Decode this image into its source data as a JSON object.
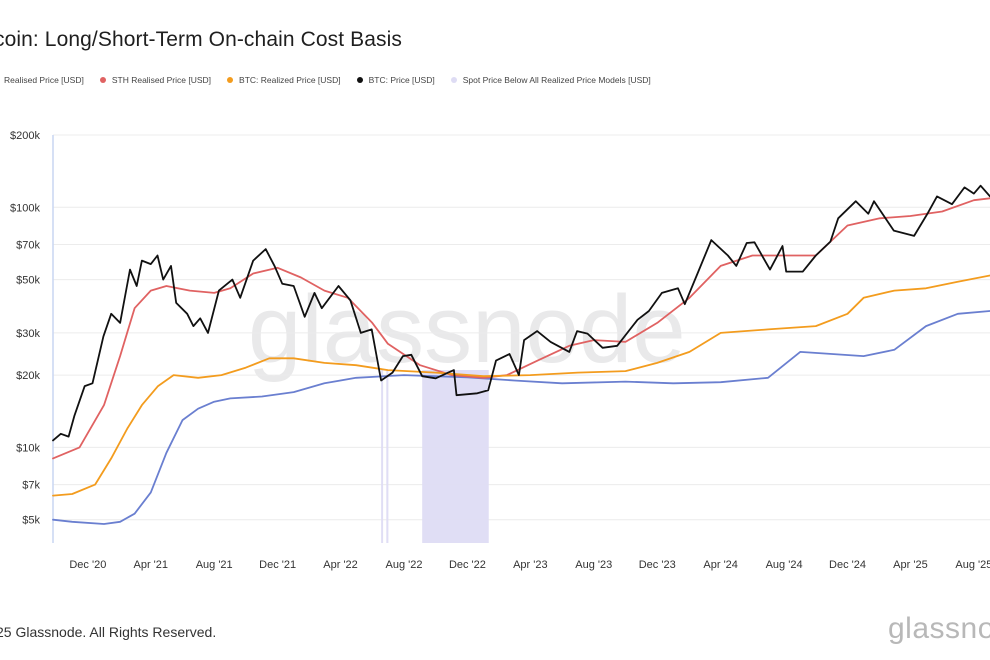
{
  "title": "coin: Long/Short-Term On-chain Cost Basis",
  "legend": [
    {
      "label": "Realised Price [USD]",
      "color": "#6a7fd0"
    },
    {
      "label": "STH Realised Price [USD]",
      "color": "#e06262"
    },
    {
      "label": "BTC: Realized Price [USD]",
      "color": "#f39c1e"
    },
    {
      "label": "BTC: Price [USD]",
      "color": "#111111"
    },
    {
      "label": "Spot Price Below All Realized Price Models [USD]",
      "color": "#dedcf4"
    }
  ],
  "footer": "25 Glassnode. All Rights Reserved.",
  "brand": "glassnode",
  "watermark": "glassnode",
  "chart_data": {
    "type": "line",
    "title": "coin: Long/Short-Term On-chain Cost Basis",
    "y_scale": "log",
    "ylim": [
      4000,
      200000
    ],
    "y_ticks": [
      {
        "value": 5000,
        "label": "$5k"
      },
      {
        "value": 7000,
        "label": "$7k"
      },
      {
        "value": 10000,
        "label": "$10k"
      },
      {
        "value": 20000,
        "label": "$20k"
      },
      {
        "value": 30000,
        "label": "$30k"
      },
      {
        "value": 50000,
        "label": "$50k"
      },
      {
        "value": 70000,
        "label": "$70k"
      },
      {
        "value": 100000,
        "label": "$100k"
      },
      {
        "value": 200000,
        "label": "$200k"
      }
    ],
    "xlim": [
      "2020-09-25",
      "2025-09-01"
    ],
    "x_ticks": [
      {
        "date": "2020-12-01",
        "label": "Dec '20"
      },
      {
        "date": "2021-04-01",
        "label": "Apr '21"
      },
      {
        "date": "2021-08-01",
        "label": "Aug '21"
      },
      {
        "date": "2021-12-01",
        "label": "Dec '21"
      },
      {
        "date": "2022-04-01",
        "label": "Apr '22"
      },
      {
        "date": "2022-08-01",
        "label": "Aug '22"
      },
      {
        "date": "2022-12-01",
        "label": "Dec '22"
      },
      {
        "date": "2023-04-01",
        "label": "Apr '23"
      },
      {
        "date": "2023-08-01",
        "label": "Aug '23"
      },
      {
        "date": "2023-12-01",
        "label": "Dec '23"
      },
      {
        "date": "2024-04-01",
        "label": "Apr '24"
      },
      {
        "date": "2024-08-01",
        "label": "Aug '24"
      },
      {
        "date": "2024-12-01",
        "label": "Dec '24"
      },
      {
        "date": "2025-04-01",
        "label": "Apr '25"
      },
      {
        "date": "2025-08-01",
        "label": "Aug '25"
      }
    ],
    "shaded_ranges": [
      {
        "start": "2022-06-18",
        "end": "2022-06-20"
      },
      {
        "start": "2022-06-28",
        "end": "2022-07-02"
      },
      {
        "start": "2022-09-05",
        "end": "2023-01-11"
      }
    ],
    "series": [
      {
        "name": "Realised Price [USD]",
        "color": "#6a7fd0",
        "points": [
          [
            "2020-09-25",
            5000
          ],
          [
            "2020-11-01",
            4900
          ],
          [
            "2021-01-01",
            4800
          ],
          [
            "2021-02-01",
            4900
          ],
          [
            "2021-03-01",
            5300
          ],
          [
            "2021-04-01",
            6500
          ],
          [
            "2021-05-01",
            9500
          ],
          [
            "2021-06-01",
            13000
          ],
          [
            "2021-07-01",
            14500
          ],
          [
            "2021-08-01",
            15500
          ],
          [
            "2021-09-01",
            16000
          ],
          [
            "2021-11-01",
            16300
          ],
          [
            "2022-01-01",
            17000
          ],
          [
            "2022-03-01",
            18500
          ],
          [
            "2022-05-01",
            19500
          ],
          [
            "2022-08-01",
            20000
          ],
          [
            "2022-12-01",
            19600
          ],
          [
            "2023-03-01",
            19000
          ],
          [
            "2023-06-01",
            18500
          ],
          [
            "2023-10-01",
            18800
          ],
          [
            "2024-01-01",
            18500
          ],
          [
            "2024-04-01",
            18700
          ],
          [
            "2024-07-01",
            19500
          ],
          [
            "2024-09-01",
            25000
          ],
          [
            "2024-11-01",
            24500
          ],
          [
            "2025-01-01",
            24000
          ],
          [
            "2025-03-01",
            25500
          ],
          [
            "2025-05-01",
            32000
          ],
          [
            "2025-07-01",
            36000
          ],
          [
            "2025-09-01",
            37000
          ]
        ]
      },
      {
        "name": "STH Realised Price [USD]",
        "color": "#e06262",
        "points": [
          [
            "2020-09-25",
            9000
          ],
          [
            "2020-11-15",
            10000
          ],
          [
            "2021-01-01",
            15000
          ],
          [
            "2021-02-01",
            24000
          ],
          [
            "2021-03-01",
            38000
          ],
          [
            "2021-04-01",
            45000
          ],
          [
            "2021-05-01",
            47000
          ],
          [
            "2021-06-15",
            45000
          ],
          [
            "2021-08-01",
            44000
          ],
          [
            "2021-09-01",
            46000
          ],
          [
            "2021-10-15",
            53000
          ],
          [
            "2021-12-01",
            56000
          ],
          [
            "2022-01-15",
            51000
          ],
          [
            "2022-03-01",
            45000
          ],
          [
            "2022-04-15",
            42000
          ],
          [
            "2022-06-01",
            33000
          ],
          [
            "2022-07-01",
            27000
          ],
          [
            "2022-09-01",
            22000
          ],
          [
            "2022-11-01",
            20000
          ],
          [
            "2023-01-01",
            19500
          ],
          [
            "2023-02-15",
            20000
          ],
          [
            "2023-04-15",
            23000
          ],
          [
            "2023-06-15",
            26500
          ],
          [
            "2023-08-01",
            28000
          ],
          [
            "2023-10-01",
            27500
          ],
          [
            "2023-12-01",
            33000
          ],
          [
            "2024-02-01",
            42000
          ],
          [
            "2024-04-01",
            57000
          ],
          [
            "2024-06-01",
            63000
          ],
          [
            "2024-08-01",
            63000
          ],
          [
            "2024-10-01",
            63000
          ],
          [
            "2024-12-01",
            84000
          ],
          [
            "2025-02-01",
            90000
          ],
          [
            "2025-04-01",
            92000
          ],
          [
            "2025-06-01",
            96000
          ],
          [
            "2025-08-01",
            107000
          ],
          [
            "2025-09-01",
            109000
          ]
        ]
      },
      {
        "name": "BTC: Realized Price [USD]",
        "color": "#f39c1e",
        "points": [
          [
            "2020-09-25",
            6300
          ],
          [
            "2020-11-01",
            6400
          ],
          [
            "2020-12-15",
            7000
          ],
          [
            "2021-01-15",
            9000
          ],
          [
            "2021-02-15",
            12000
          ],
          [
            "2021-03-15",
            15000
          ],
          [
            "2021-04-15",
            18000
          ],
          [
            "2021-05-15",
            20000
          ],
          [
            "2021-07-01",
            19500
          ],
          [
            "2021-08-15",
            20000
          ],
          [
            "2021-10-01",
            21500
          ],
          [
            "2021-11-15",
            23500
          ],
          [
            "2022-01-01",
            23500
          ],
          [
            "2022-03-01",
            22500
          ],
          [
            "2022-05-01",
            22000
          ],
          [
            "2022-07-01",
            21000
          ],
          [
            "2022-10-01",
            20500
          ],
          [
            "2023-01-01",
            19800
          ],
          [
            "2023-04-01",
            20000
          ],
          [
            "2023-07-01",
            20500
          ],
          [
            "2023-10-01",
            20800
          ],
          [
            "2023-12-01",
            22500
          ],
          [
            "2024-02-01",
            25000
          ],
          [
            "2024-04-01",
            30000
          ],
          [
            "2024-07-01",
            31000
          ],
          [
            "2024-10-01",
            32000
          ],
          [
            "2024-12-01",
            36000
          ],
          [
            "2025-01-01",
            42000
          ],
          [
            "2025-03-01",
            45000
          ],
          [
            "2025-05-01",
            46000
          ],
          [
            "2025-07-01",
            49000
          ],
          [
            "2025-09-01",
            52000
          ]
        ]
      },
      {
        "name": "BTC: Price [USD]",
        "color": "#111111",
        "points": [
          [
            "2020-09-25",
            10700
          ],
          [
            "2020-10-10",
            11400
          ],
          [
            "2020-10-25",
            11100
          ],
          [
            "2020-11-05",
            13500
          ],
          [
            "2020-11-25",
            18000
          ],
          [
            "2020-12-10",
            18500
          ],
          [
            "2020-12-31",
            29000
          ],
          [
            "2021-01-15",
            36000
          ],
          [
            "2021-02-01",
            33000
          ],
          [
            "2021-02-20",
            55000
          ],
          [
            "2021-03-05",
            47000
          ],
          [
            "2021-03-15",
            60000
          ],
          [
            "2021-04-01",
            58000
          ],
          [
            "2021-04-14",
            63000
          ],
          [
            "2021-04-25",
            50000
          ],
          [
            "2021-05-10",
            57000
          ],
          [
            "2021-05-20",
            40000
          ],
          [
            "2021-06-10",
            36000
          ],
          [
            "2021-06-22",
            32000
          ],
          [
            "2021-07-05",
            34500
          ],
          [
            "2021-07-20",
            30000
          ],
          [
            "2021-08-10",
            45000
          ],
          [
            "2021-09-05",
            50000
          ],
          [
            "2021-09-20",
            42000
          ],
          [
            "2021-10-15",
            60000
          ],
          [
            "2021-11-08",
            67000
          ],
          [
            "2021-11-25",
            57000
          ],
          [
            "2021-12-10",
            48000
          ],
          [
            "2022-01-01",
            47000
          ],
          [
            "2022-01-22",
            35000
          ],
          [
            "2022-02-10",
            44000
          ],
          [
            "2022-02-24",
            38000
          ],
          [
            "2022-03-28",
            47000
          ],
          [
            "2022-04-20",
            41000
          ],
          [
            "2022-05-10",
            30000
          ],
          [
            "2022-05-31",
            31000
          ],
          [
            "2022-06-18",
            19000
          ],
          [
            "2022-07-10",
            20500
          ],
          [
            "2022-07-30",
            24000
          ],
          [
            "2022-08-15",
            24300
          ],
          [
            "2022-09-05",
            19800
          ],
          [
            "2022-10-01",
            19400
          ],
          [
            "2022-10-25",
            20500
          ],
          [
            "2022-11-05",
            21000
          ],
          [
            "2022-11-10",
            16500
          ],
          [
            "2022-12-20",
            16800
          ],
          [
            "2023-01-10",
            17300
          ],
          [
            "2023-01-25",
            23000
          ],
          [
            "2023-02-20",
            24500
          ],
          [
            "2023-03-10",
            20000
          ],
          [
            "2023-03-20",
            28000
          ],
          [
            "2023-04-14",
            30500
          ],
          [
            "2023-05-10",
            27500
          ],
          [
            "2023-06-15",
            25000
          ],
          [
            "2023-06-30",
            30500
          ],
          [
            "2023-07-20",
            29800
          ],
          [
            "2023-08-18",
            26000
          ],
          [
            "2023-09-15",
            26500
          ],
          [
            "2023-10-24",
            34000
          ],
          [
            "2023-11-15",
            37000
          ],
          [
            "2023-12-10",
            44000
          ],
          [
            "2024-01-10",
            46000
          ],
          [
            "2024-01-23",
            39500
          ],
          [
            "2024-02-15",
            52000
          ],
          [
            "2024-03-14",
            73000
          ],
          [
            "2024-04-15",
            63000
          ],
          [
            "2024-05-01",
            57000
          ],
          [
            "2024-05-21",
            71000
          ],
          [
            "2024-06-05",
            71500
          ],
          [
            "2024-07-05",
            55000
          ],
          [
            "2024-07-29",
            69000
          ],
          [
            "2024-08-05",
            54000
          ],
          [
            "2024-09-06",
            54000
          ],
          [
            "2024-10-01",
            63000
          ],
          [
            "2024-10-29",
            72000
          ],
          [
            "2024-11-13",
            90000
          ],
          [
            "2024-12-17",
            106000
          ],
          [
            "2025-01-10",
            94000
          ],
          [
            "2025-01-21",
            106000
          ],
          [
            "2025-02-28",
            80000
          ],
          [
            "2025-04-08",
            76000
          ],
          [
            "2025-05-05",
            95000
          ],
          [
            "2025-05-22",
            111000
          ],
          [
            "2025-06-20",
            103000
          ],
          [
            "2025-07-14",
            121000
          ],
          [
            "2025-08-01",
            114000
          ],
          [
            "2025-08-14",
            123000
          ],
          [
            "2025-09-01",
            111000
          ]
        ]
      }
    ]
  }
}
